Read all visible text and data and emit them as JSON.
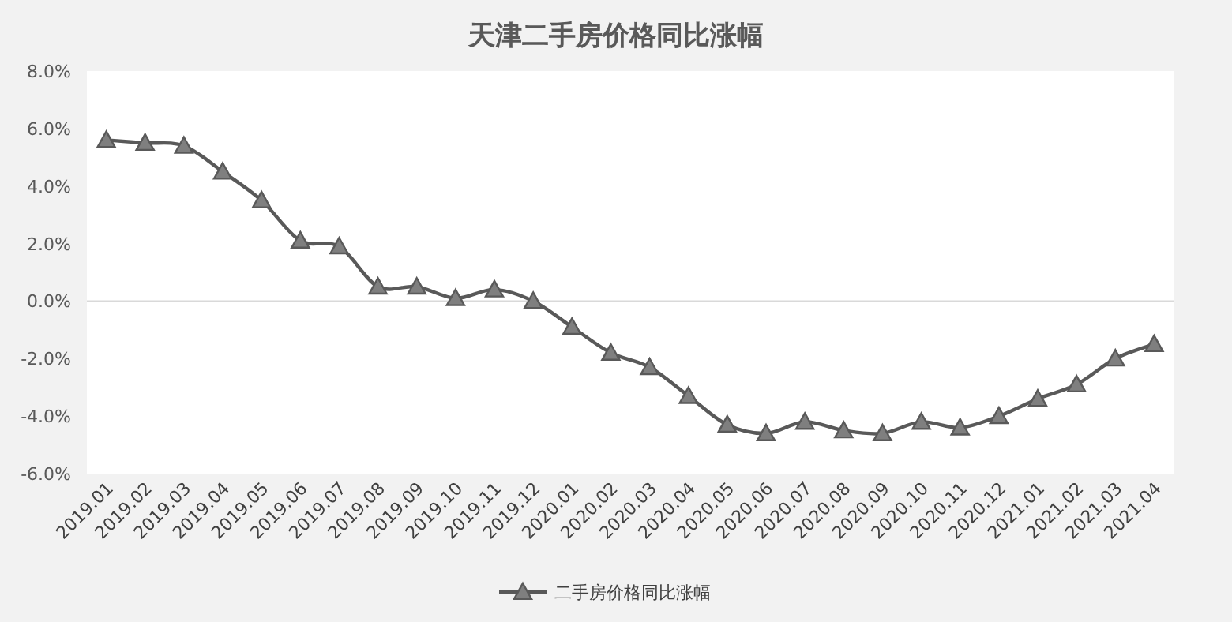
{
  "chart_data": {
    "type": "line",
    "title": "天津二手房价格同比涨幅",
    "categories": [
      "2019.01",
      "2019.02",
      "2019.03",
      "2019.04",
      "2019.05",
      "2019.06",
      "2019.07",
      "2019.08",
      "2019.09",
      "2019.10",
      "2019.11",
      "2019.12",
      "2020.01",
      "2020.02",
      "2020.03",
      "2020.04",
      "2020.05",
      "2020.06",
      "2020.07",
      "2020.08",
      "2020.09",
      "2020.10",
      "2020.11",
      "2020.12",
      "2021.01",
      "2021.02",
      "2021.03",
      "2021.04"
    ],
    "series": [
      {
        "name": "二手房价格同比涨幅",
        "color": "#595959",
        "values": [
          5.6,
          5.5,
          5.4,
          4.5,
          3.5,
          2.1,
          1.9,
          0.5,
          0.5,
          0.1,
          0.4,
          0.0,
          -0.9,
          -1.8,
          -2.3,
          -3.3,
          -4.3,
          -4.6,
          -4.2,
          -4.5,
          -4.6,
          -4.2,
          -4.4,
          -4.0,
          -3.4,
          -2.9,
          -2.0,
          -1.5
        ]
      }
    ],
    "ylim": [
      -6,
      8
    ],
    "yticks": [
      {
        "value": -6,
        "label": "-6.0%"
      },
      {
        "value": -4,
        "label": "-4.0%"
      },
      {
        "value": -2,
        "label": "-2.0%"
      },
      {
        "value": 0,
        "label": "0.0%"
      },
      {
        "value": 2,
        "label": "2.0%"
      },
      {
        "value": 4,
        "label": "4.0%"
      },
      {
        "value": 6,
        "label": "6.0%"
      },
      {
        "value": 8,
        "label": "8.0%"
      }
    ],
    "marker": "triangle",
    "legend": "bottom"
  }
}
